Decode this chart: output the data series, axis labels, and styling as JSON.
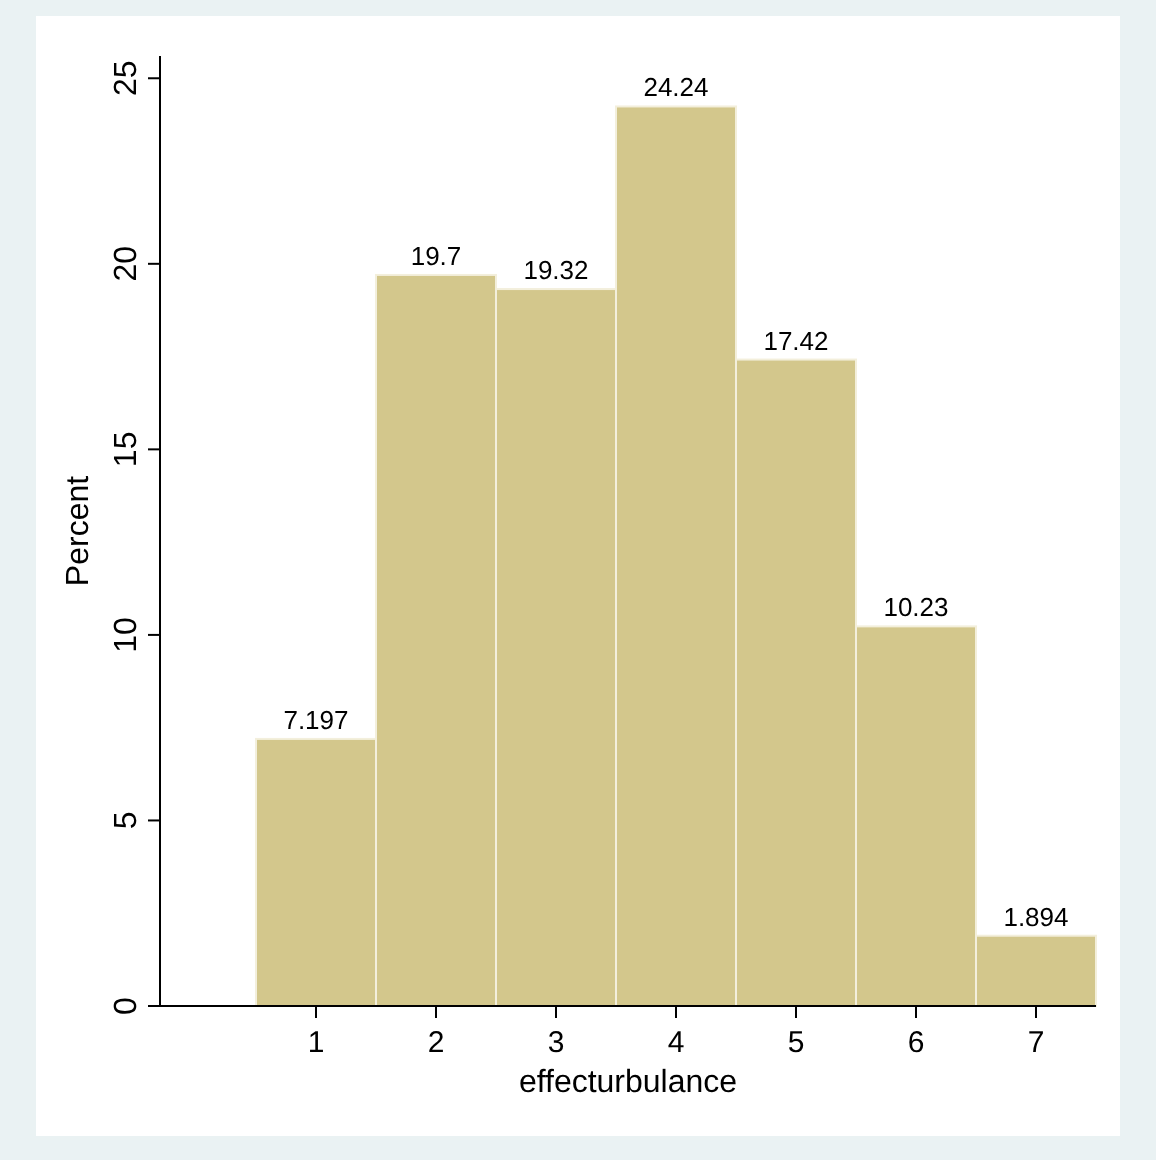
{
  "chart_data": {
    "type": "histogram",
    "xlabel": "effecturbulance",
    "ylabel": "Percent",
    "bins": [
      0.5,
      1.5,
      2.5,
      3.5,
      4.5,
      5.5,
      6.5,
      7.5
    ],
    "values": [
      7.197,
      19.7,
      19.32,
      24.24,
      17.42,
      10.23,
      1.894
    ],
    "color": "#d3c78c",
    "data_labels": true,
    "xlim": [
      -0.3,
      7.5
    ],
    "xticks": [
      1,
      2,
      3,
      4,
      5,
      6,
      7
    ],
    "ylim": [
      0,
      25.6
    ],
    "yticks": [
      0,
      5,
      10,
      15,
      20,
      25
    ],
    "grid": false
  }
}
